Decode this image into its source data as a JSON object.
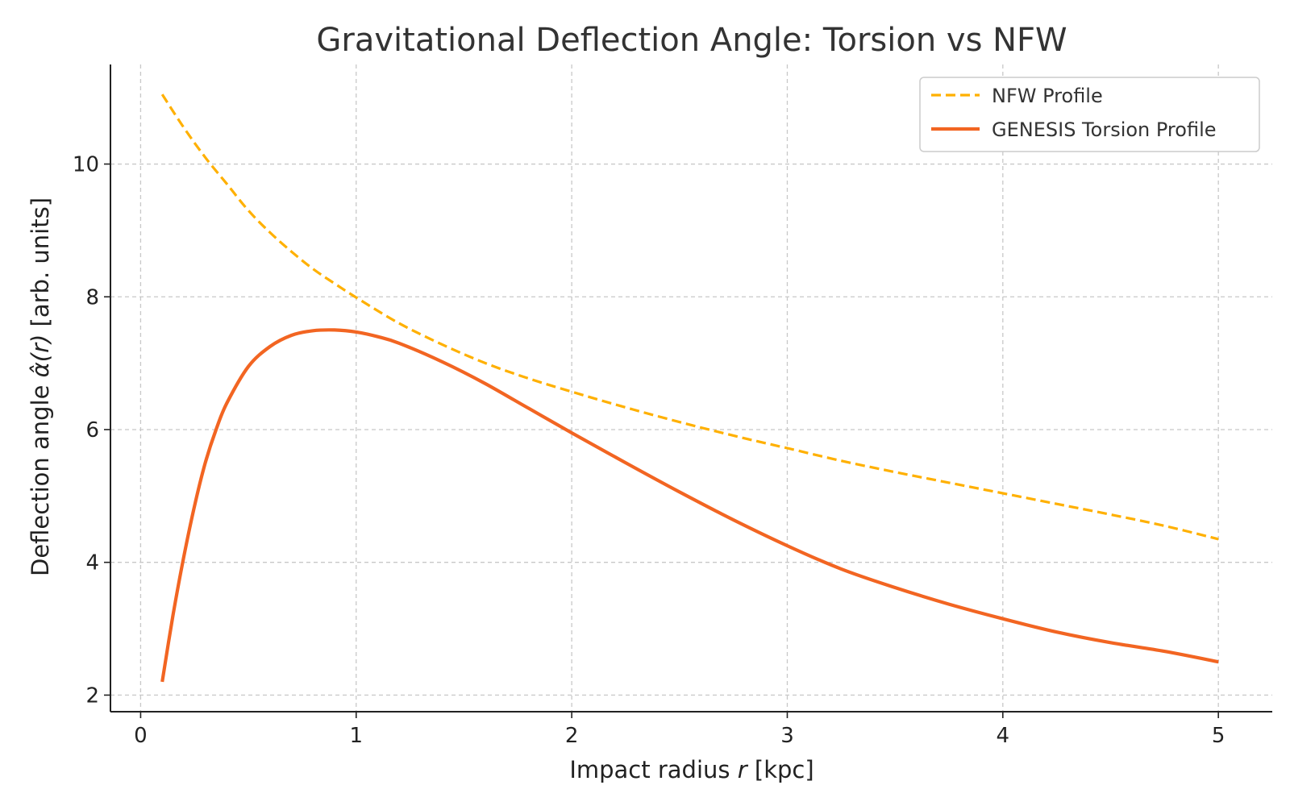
{
  "chart_data": {
    "type": "line",
    "title": "Gravitational Deflection Angle: Torsion vs NFW",
    "xlabel": {
      "prefix": "Impact radius ",
      "var": "r",
      "suffix": " [kpc]"
    },
    "ylabel": {
      "prefix": "Deflection angle ",
      "var": "α̂(r)",
      "suffix": " [arb. units]"
    },
    "xlim": [
      -0.14,
      5.25
    ],
    "ylim": [
      1.75,
      11.5
    ],
    "xticks": [
      0,
      1,
      2,
      3,
      4,
      5
    ],
    "yticks": [
      2,
      4,
      6,
      8,
      10
    ],
    "grid": true,
    "legend_position": "top-right",
    "series": [
      {
        "name": "NFW Profile",
        "color": "#ffb000",
        "style": "dashed",
        "x": [
          0.1,
          0.2,
          0.3,
          0.4,
          0.5,
          0.6,
          0.7,
          0.8,
          0.9,
          1.0,
          1.2,
          1.4,
          1.6,
          1.8,
          2.0,
          2.2,
          2.4,
          2.6,
          2.8,
          3.0,
          3.25,
          3.5,
          3.75,
          4.0,
          4.25,
          4.5,
          4.75,
          5.0
        ],
        "y": [
          11.05,
          10.55,
          10.1,
          9.7,
          9.3,
          8.97,
          8.68,
          8.42,
          8.2,
          7.99,
          7.6,
          7.28,
          7.0,
          6.77,
          6.57,
          6.38,
          6.2,
          6.03,
          5.87,
          5.72,
          5.53,
          5.36,
          5.2,
          5.04,
          4.88,
          4.72,
          4.55,
          4.35
        ]
      },
      {
        "name": "GENESIS Torsion Profile",
        "color": "#f26522",
        "style": "solid",
        "x": [
          0.1,
          0.15,
          0.2,
          0.25,
          0.3,
          0.35,
          0.4,
          0.5,
          0.6,
          0.7,
          0.8,
          0.9,
          1.0,
          1.1,
          1.2,
          1.4,
          1.6,
          1.8,
          2.0,
          2.25,
          2.5,
          2.75,
          3.0,
          3.25,
          3.5,
          3.75,
          4.0,
          4.25,
          4.5,
          4.75,
          5.0
        ],
        "y": [
          2.2,
          3.2,
          4.08,
          4.85,
          5.5,
          6.0,
          6.4,
          6.95,
          7.25,
          7.42,
          7.49,
          7.5,
          7.47,
          7.4,
          7.3,
          7.02,
          6.69,
          6.32,
          5.95,
          5.5,
          5.06,
          4.64,
          4.25,
          3.9,
          3.62,
          3.37,
          3.15,
          2.95,
          2.79,
          2.66,
          2.5
        ]
      }
    ]
  }
}
